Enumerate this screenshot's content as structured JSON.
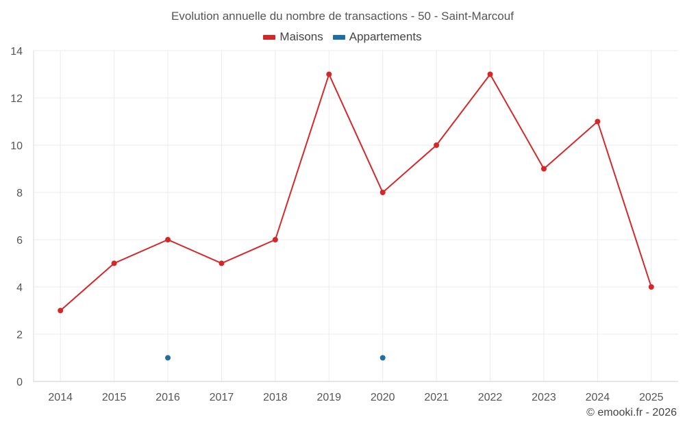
{
  "chart_data": {
    "type": "line",
    "title": "Evolution annuelle du nombre de transactions - 50 - Saint-Marcouf",
    "categories": [
      "2014",
      "2015",
      "2016",
      "2017",
      "2018",
      "2019",
      "2020",
      "2021",
      "2022",
      "2023",
      "2024",
      "2025"
    ],
    "series": [
      {
        "name": "Maisons",
        "color": "#d62728",
        "values": [
          3,
          5,
          6,
          5,
          6,
          13,
          8,
          10,
          13,
          9,
          11,
          4
        ]
      },
      {
        "name": "Appartements",
        "color": "#1f6fa5",
        "values": [
          null,
          null,
          1,
          null,
          null,
          null,
          1,
          null,
          null,
          null,
          null,
          null
        ]
      }
    ],
    "ylim": [
      0,
      14
    ],
    "yticks": [
      0,
      2,
      4,
      6,
      8,
      10,
      12,
      14
    ],
    "grid": true,
    "legend": "top-center"
  },
  "credit": "© emooki.fr - 2026"
}
